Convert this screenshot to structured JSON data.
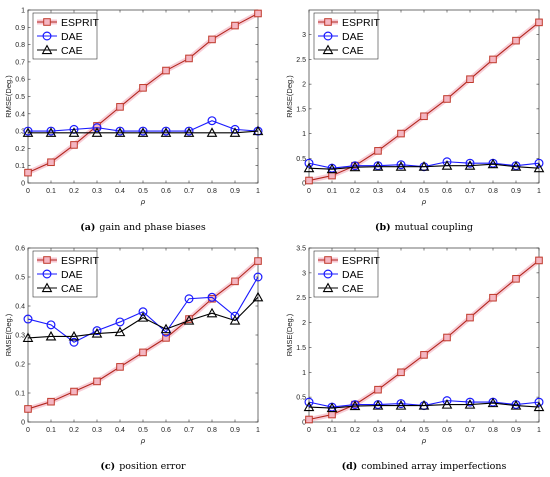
{
  "styles": {
    "ESPRIT": {
      "line": "#b3271f",
      "marker_edge": "#c0392b",
      "marker_fill": "#f4b6c2",
      "shadow": "#f6c6d0",
      "marker": "square"
    },
    "DAE": {
      "line": "#1a1aff",
      "marker_edge": "#1a1aff",
      "marker_fill": "none",
      "marker": "circle"
    },
    "CAE": {
      "line": "#000000",
      "marker_edge": "#000000",
      "marker_fill": "none",
      "marker": "triangle"
    }
  },
  "chart_data": [
    {
      "type": "line",
      "caption_tag": "(a)",
      "caption": "gain and phase biases",
      "xlabel": "ρ",
      "ylabel": "RMSE(Deg.)",
      "xlim": [
        0,
        1
      ],
      "ylim": [
        0,
        1
      ],
      "xticks": [
        "0",
        "0.1",
        "0.2",
        "0.3",
        "0.4",
        "0.5",
        "0.6",
        "0.7",
        "0.8",
        "0.9",
        "1"
      ],
      "yticks": [
        "0",
        "0.1",
        "0.2",
        "0.3",
        "0.4",
        "0.5",
        "0.6",
        "0.7",
        "0.8",
        "0.9",
        "1"
      ],
      "x": [
        0,
        0.1,
        0.2,
        0.3,
        0.4,
        0.5,
        0.6,
        0.7,
        0.8,
        0.9,
        1
      ],
      "series": [
        {
          "name": "ESPRIT",
          "values": [
            0.06,
            0.12,
            0.22,
            0.33,
            0.44,
            0.55,
            0.65,
            0.72,
            0.83,
            0.91,
            0.98
          ]
        },
        {
          "name": "DAE",
          "values": [
            0.3,
            0.3,
            0.31,
            0.32,
            0.3,
            0.3,
            0.3,
            0.3,
            0.36,
            0.31,
            0.3
          ]
        },
        {
          "name": "CAE",
          "values": [
            0.29,
            0.29,
            0.29,
            0.29,
            0.29,
            0.29,
            0.29,
            0.29,
            0.29,
            0.29,
            0.3
          ]
        }
      ]
    },
    {
      "type": "line",
      "caption_tag": "(b)",
      "caption": "mutual coupling",
      "xlabel": "ρ",
      "ylabel": "RMSE(Deg.)",
      "xlim": [
        0,
        1
      ],
      "ylim": [
        0,
        3.5
      ],
      "xticks": [
        "0",
        "0.1",
        "0.2",
        "0.3",
        "0.4",
        "0.5",
        "0.6",
        "0.7",
        "0.8",
        "0.9",
        "1"
      ],
      "yticks": [
        "0",
        "0.5",
        "1",
        "1.5",
        "2",
        "2.5",
        "3"
      ],
      "x": [
        0,
        0.1,
        0.2,
        0.3,
        0.4,
        0.5,
        0.6,
        0.7,
        0.8,
        0.9,
        1
      ],
      "series": [
        {
          "name": "ESPRIT",
          "values": [
            0.05,
            0.15,
            0.35,
            0.65,
            1.0,
            1.35,
            1.7,
            2.1,
            2.5,
            2.88,
            3.25
          ]
        },
        {
          "name": "DAE",
          "values": [
            0.4,
            0.3,
            0.35,
            0.35,
            0.37,
            0.33,
            0.43,
            0.4,
            0.4,
            0.35,
            0.4
          ]
        },
        {
          "name": "CAE",
          "values": [
            0.3,
            0.28,
            0.32,
            0.33,
            0.33,
            0.33,
            0.35,
            0.35,
            0.38,
            0.33,
            0.3
          ]
        }
      ]
    },
    {
      "type": "line",
      "caption_tag": "(c)",
      "caption": "position error",
      "xlabel": "ρ",
      "ylabel": "RMSE(Deg.)",
      "xlim": [
        0,
        1
      ],
      "ylim": [
        0,
        0.6
      ],
      "xticks": [
        "0",
        "0.1",
        "0.2",
        "0.3",
        "0.4",
        "0.5",
        "0.6",
        "0.7",
        "0.8",
        "0.9",
        "1"
      ],
      "yticks": [
        "0",
        "0.1",
        "0.2",
        "0.3",
        "0.4",
        "0.5",
        "0.6"
      ],
      "x": [
        0,
        0.1,
        0.2,
        0.3,
        0.4,
        0.5,
        0.6,
        0.7,
        0.8,
        0.9,
        1
      ],
      "series": [
        {
          "name": "ESPRIT",
          "values": [
            0.045,
            0.07,
            0.105,
            0.14,
            0.19,
            0.24,
            0.29,
            0.355,
            0.425,
            0.485,
            0.555
          ]
        },
        {
          "name": "DAE",
          "values": [
            0.355,
            0.335,
            0.275,
            0.315,
            0.345,
            0.38,
            0.31,
            0.425,
            0.43,
            0.365,
            0.5
          ]
        },
        {
          "name": "CAE",
          "values": [
            0.29,
            0.295,
            0.295,
            0.305,
            0.31,
            0.36,
            0.32,
            0.35,
            0.375,
            0.35,
            0.43
          ]
        }
      ]
    },
    {
      "type": "line",
      "caption_tag": "(d)",
      "caption": "combined array imperfections",
      "xlabel": "ρ",
      "ylabel": "RMSE(Deg.)",
      "xlim": [
        0,
        1
      ],
      "ylim": [
        0,
        3.5
      ],
      "xticks": [
        "0",
        "0.1",
        "0.2",
        "0.3",
        "0.4",
        "0.5",
        "0.6",
        "0.7",
        "0.8",
        "0.9",
        "1"
      ],
      "yticks": [
        "0",
        "0.5",
        "1",
        "1.5",
        "2",
        "2.5",
        "3",
        "3.5"
      ],
      "x": [
        0,
        0.1,
        0.2,
        0.3,
        0.4,
        0.5,
        0.6,
        0.7,
        0.8,
        0.9,
        1
      ],
      "series": [
        {
          "name": "ESPRIT",
          "values": [
            0.05,
            0.15,
            0.35,
            0.65,
            1.0,
            1.35,
            1.7,
            2.1,
            2.5,
            2.88,
            3.25
          ]
        },
        {
          "name": "DAE",
          "values": [
            0.4,
            0.3,
            0.35,
            0.35,
            0.37,
            0.33,
            0.43,
            0.4,
            0.4,
            0.35,
            0.4
          ]
        },
        {
          "name": "CAE",
          "values": [
            0.3,
            0.28,
            0.32,
            0.33,
            0.33,
            0.33,
            0.35,
            0.35,
            0.38,
            0.33,
            0.3
          ]
        }
      ]
    }
  ]
}
